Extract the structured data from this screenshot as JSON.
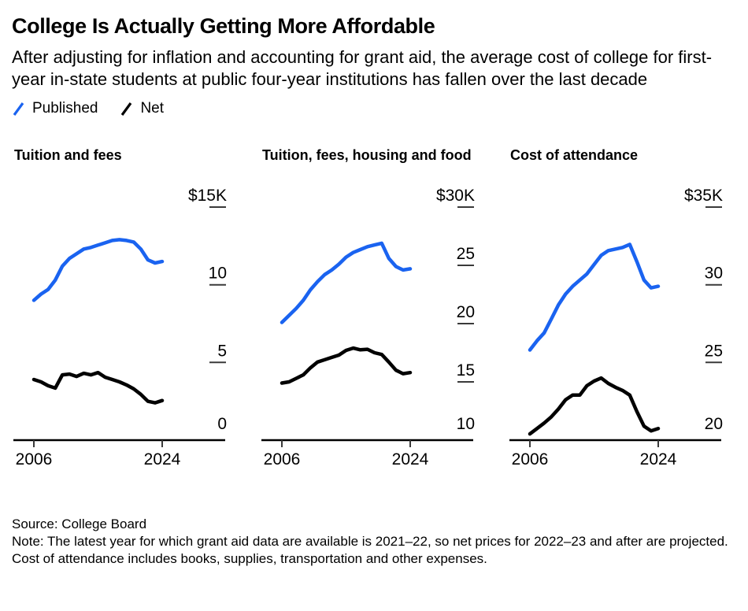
{
  "header": {
    "title": "College Is Actually Getting More Affordable",
    "subtitle": "After adjusting for inflation and accounting for grant aid, the average cost of college for first-year in-state students at public four-year institutions has fallen over the last decade"
  },
  "legend": {
    "items": [
      {
        "label": "Published",
        "icon": "blue-slash-icon",
        "color": "#1a63f0"
      },
      {
        "label": "Net",
        "icon": "black-slash-icon",
        "color": "#000000"
      }
    ]
  },
  "colors": {
    "published": "#1a63f0",
    "net": "#000000",
    "axis": "#000000",
    "tick_dash": "#3a3a3a"
  },
  "footer": {
    "source": "Source: College Board",
    "note": "Note: The latest year for which grant aid data are available is 2021–22, so net prices for 2022–23 and after are projected. Cost of attendance includes books, supplies, transportation and other expenses."
  },
  "chart_data": [
    {
      "type": "line",
      "title": "Tuition and fees",
      "x": [
        2006,
        2007,
        2008,
        2009,
        2010,
        2011,
        2012,
        2013,
        2014,
        2015,
        2016,
        2017,
        2018,
        2019,
        2020,
        2021,
        2022,
        2023,
        2024
      ],
      "xtick_labels": [
        "2006",
        "2024"
      ],
      "ylim": [
        0,
        15
      ],
      "yticks": [
        {
          "label": "$15K",
          "value": 15
        },
        {
          "label": "10",
          "value": 10
        },
        {
          "label": "5",
          "value": 5
        },
        {
          "label": "0",
          "value": 0
        }
      ],
      "series": [
        {
          "name": "Published",
          "values": [
            9.0,
            9.4,
            9.7,
            10.3,
            11.2,
            11.7,
            12.0,
            12.3,
            12.4,
            12.55,
            12.7,
            12.85,
            12.9,
            12.85,
            12.75,
            12.3,
            11.6,
            11.4,
            11.5
          ]
        },
        {
          "name": "Net",
          "values": [
            3.9,
            3.75,
            3.5,
            3.35,
            4.2,
            4.25,
            4.1,
            4.3,
            4.2,
            4.35,
            4.05,
            3.9,
            3.75,
            3.55,
            3.3,
            2.95,
            2.5,
            2.4,
            2.55
          ]
        }
      ]
    },
    {
      "type": "line",
      "title": "Tuition, fees, housing and food",
      "x": [
        2006,
        2007,
        2008,
        2009,
        2010,
        2011,
        2012,
        2013,
        2014,
        2015,
        2016,
        2017,
        2018,
        2019,
        2020,
        2021,
        2022,
        2023,
        2024
      ],
      "xtick_labels": [
        "2006",
        "2024"
      ],
      "ylim": [
        10,
        30
      ],
      "yticks": [
        {
          "label": "$30K",
          "value": 30
        },
        {
          "label": "25",
          "value": 25
        },
        {
          "label": "20",
          "value": 20
        },
        {
          "label": "15",
          "value": 15
        },
        {
          "label": "10",
          "value": 10
        }
      ],
      "series": [
        {
          "name": "Published",
          "values": [
            20.1,
            20.7,
            21.3,
            22.0,
            22.9,
            23.6,
            24.2,
            24.6,
            25.1,
            25.7,
            26.1,
            26.35,
            26.6,
            26.75,
            26.9,
            25.6,
            24.9,
            24.6,
            24.7
          ]
        },
        {
          "name": "Net",
          "values": [
            14.9,
            15.0,
            15.3,
            15.6,
            16.2,
            16.7,
            16.9,
            17.1,
            17.3,
            17.7,
            17.9,
            17.75,
            17.8,
            17.5,
            17.35,
            16.7,
            16.0,
            15.7,
            15.8
          ]
        }
      ]
    },
    {
      "type": "line",
      "title": "Cost of attendance",
      "x": [
        2006,
        2007,
        2008,
        2009,
        2010,
        2011,
        2012,
        2013,
        2014,
        2015,
        2016,
        2017,
        2018,
        2019,
        2020,
        2021,
        2022,
        2023,
        2024
      ],
      "xtick_labels": [
        "2006",
        "2024"
      ],
      "ylim": [
        20,
        35
      ],
      "yticks": [
        {
          "label": "$35K",
          "value": 35
        },
        {
          "label": "30",
          "value": 30
        },
        {
          "label": "25",
          "value": 25
        },
        {
          "label": "20",
          "value": 20
        }
      ],
      "series": [
        {
          "name": "Published",
          "values": [
            25.8,
            26.4,
            26.9,
            27.8,
            28.7,
            29.4,
            29.9,
            30.3,
            30.7,
            31.3,
            31.9,
            32.2,
            32.3,
            32.4,
            32.6,
            31.5,
            30.3,
            29.8,
            29.9
          ]
        },
        {
          "name": "Net",
          "values": [
            20.4,
            20.75,
            21.1,
            21.5,
            22.0,
            22.6,
            22.9,
            22.9,
            23.5,
            23.8,
            24.0,
            23.65,
            23.4,
            23.2,
            22.9,
            21.85,
            20.9,
            20.6,
            20.75
          ]
        }
      ]
    }
  ]
}
